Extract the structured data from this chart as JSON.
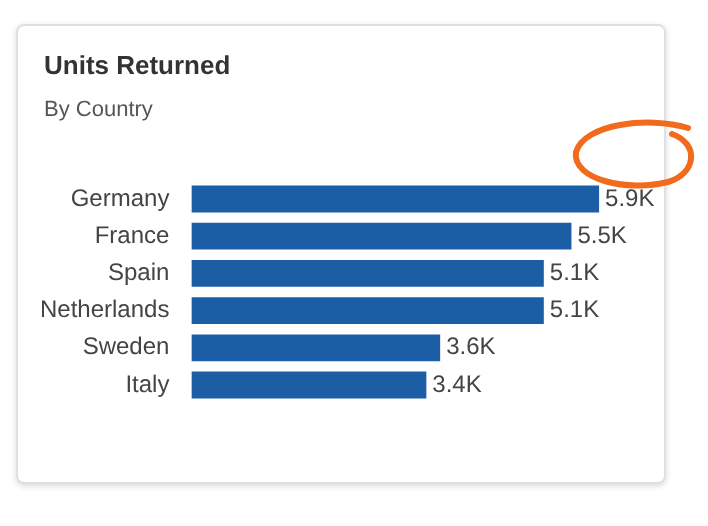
{
  "chart_data": {
    "type": "bar",
    "orientation": "horizontal",
    "title": "Units Returned",
    "subtitle": "By Country",
    "categories": [
      "Germany",
      "France",
      "Spain",
      "Netherlands",
      "Sweden",
      "Italy"
    ],
    "values": [
      5900,
      5500,
      5100,
      5100,
      3600,
      3400
    ],
    "value_labels": [
      "5.9K",
      "5.5K",
      "5.1K",
      "5.1K",
      "3.6K",
      "3.4K"
    ],
    "color": "#1b5ea6"
  }
}
